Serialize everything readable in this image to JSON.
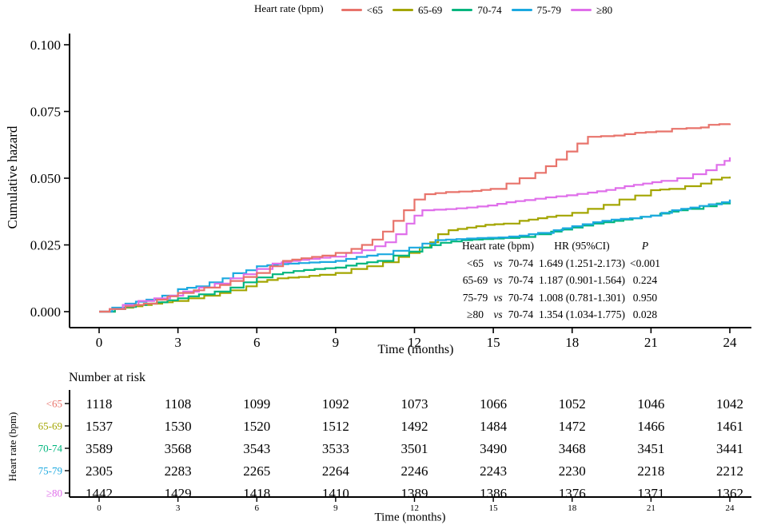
{
  "legend": {
    "title": "Heart rate (bpm)",
    "items": [
      {
        "label": "<65",
        "color": "#E8736B"
      },
      {
        "label": "65-69",
        "color": "#A3A500"
      },
      {
        "label": "70-74",
        "color": "#00B57E"
      },
      {
        "label": "75-79",
        "color": "#1CA9E0"
      },
      {
        "label": "≥80",
        "color": "#DF6EEA"
      }
    ]
  },
  "y_axis": {
    "title": "Cumulative hazard",
    "tick_labels": [
      "0.000",
      "0.025",
      "0.050",
      "0.075",
      "0.100"
    ],
    "tick_values": [
      0,
      0.025,
      0.05,
      0.075,
      0.1
    ]
  },
  "x_axis": {
    "title": "Time (months)",
    "ticks": [
      0,
      3,
      6,
      9,
      12,
      15,
      18,
      21,
      24
    ]
  },
  "inset_table": {
    "header": {
      "group": "Heart rate (bpm)",
      "hr": "HR (95%CI)",
      "p": "P"
    },
    "rows": [
      {
        "group": "<65",
        "vs": "vs",
        "ref": "70-74",
        "hr": "1.649 (1.251-2.173)",
        "p": "<0.001"
      },
      {
        "group": "65-69",
        "vs": "vs",
        "ref": "70-74",
        "hr": "1.187 (0.901-1.564)",
        "p": "0.224"
      },
      {
        "group": "75-79",
        "vs": "vs",
        "ref": "70-74",
        "hr": "1.008 (0.781-1.301)",
        "p": "0.950"
      },
      {
        "group": "≥80",
        "vs": "vs",
        "ref": "70-74",
        "hr": "1.354 (1.034-1.775)",
        "p": "0.028"
      }
    ]
  },
  "risk_table": {
    "title": "Number at risk",
    "axis_label": "Heart rate (bpm)",
    "x_label": "Time (months)",
    "times": [
      0,
      3,
      6,
      9,
      12,
      15,
      18,
      21,
      24
    ],
    "rows": [
      {
        "label": "<65",
        "color": "#E8736B",
        "counts": [
          1118,
          1108,
          1099,
          1092,
          1073,
          1066,
          1052,
          1046,
          1042
        ]
      },
      {
        "label": "65-69",
        "color": "#A3A500",
        "counts": [
          1537,
          1530,
          1520,
          1512,
          1492,
          1484,
          1472,
          1466,
          1461
        ]
      },
      {
        "label": "70-74",
        "color": "#00B57E",
        "counts": [
          3589,
          3568,
          3543,
          3533,
          3501,
          3490,
          3468,
          3451,
          3441
        ]
      },
      {
        "label": "75-79",
        "color": "#1CA9E0",
        "counts": [
          2305,
          2283,
          2265,
          2264,
          2246,
          2243,
          2230,
          2218,
          2212
        ]
      },
      {
        "label": "≥80",
        "color": "#DF6EEA",
        "counts": [
          1442,
          1429,
          1418,
          1410,
          1389,
          1386,
          1376,
          1371,
          1362
        ]
      }
    ]
  },
  "chart_data": {
    "type": "line",
    "step": true,
    "xlabel": "Time (months)",
    "ylabel": "Cumulative hazard",
    "xlim": [
      0,
      24
    ],
    "ylim": [
      0,
      0.1
    ],
    "grid": false,
    "legend_position": "top",
    "series": [
      {
        "name": "<65",
        "color": "#E8736B",
        "points": [
          [
            0,
            0
          ],
          [
            0.4,
            0.001
          ],
          [
            1,
            0.002
          ],
          [
            1.7,
            0.003
          ],
          [
            2.2,
            0.0045
          ],
          [
            3,
            0.007
          ],
          [
            3.6,
            0.008
          ],
          [
            4,
            0.009
          ],
          [
            4.6,
            0.01
          ],
          [
            5,
            0.0115
          ],
          [
            5.5,
            0.013
          ],
          [
            6,
            0.0145
          ],
          [
            6.5,
            0.017
          ],
          [
            7,
            0.019
          ],
          [
            7.7,
            0.02
          ],
          [
            8.5,
            0.021
          ],
          [
            9,
            0.022
          ],
          [
            9.6,
            0.0235
          ],
          [
            10,
            0.025
          ],
          [
            10.4,
            0.027
          ],
          [
            10.8,
            0.03
          ],
          [
            11.2,
            0.034
          ],
          [
            11.6,
            0.038
          ],
          [
            12,
            0.042
          ],
          [
            12.4,
            0.044
          ],
          [
            13.2,
            0.0448
          ],
          [
            14.2,
            0.0452
          ],
          [
            14.9,
            0.046
          ],
          [
            15.5,
            0.048
          ],
          [
            16,
            0.05
          ],
          [
            16.6,
            0.052
          ],
          [
            17,
            0.0545
          ],
          [
            17.4,
            0.057
          ],
          [
            17.8,
            0.06
          ],
          [
            18.2,
            0.063
          ],
          [
            18.6,
            0.0655
          ],
          [
            19.6,
            0.066
          ],
          [
            20.4,
            0.067
          ],
          [
            21.2,
            0.0675
          ],
          [
            21.8,
            0.0685
          ],
          [
            22.9,
            0.069
          ],
          [
            23.2,
            0.07
          ],
          [
            24,
            0.0705
          ]
        ]
      },
      {
        "name": "65-69",
        "color": "#A3A500",
        "points": [
          [
            0,
            0
          ],
          [
            0.6,
            0.001
          ],
          [
            1.3,
            0.002
          ],
          [
            2,
            0.003
          ],
          [
            2.8,
            0.004
          ],
          [
            3.4,
            0.005
          ],
          [
            4,
            0.006
          ],
          [
            4.6,
            0.007
          ],
          [
            5,
            0.008
          ],
          [
            5.6,
            0.0095
          ],
          [
            6,
            0.0112
          ],
          [
            6.8,
            0.0125
          ],
          [
            7.6,
            0.013
          ],
          [
            8.4,
            0.0138
          ],
          [
            9,
            0.0145
          ],
          [
            9.6,
            0.016
          ],
          [
            10.2,
            0.017
          ],
          [
            10.8,
            0.0185
          ],
          [
            11.4,
            0.0205
          ],
          [
            11.8,
            0.022
          ],
          [
            12.2,
            0.024
          ],
          [
            12.6,
            0.026
          ],
          [
            12.9,
            0.029
          ],
          [
            13.3,
            0.0305
          ],
          [
            14,
            0.0315
          ],
          [
            14.7,
            0.0325
          ],
          [
            15.4,
            0.033
          ],
          [
            16,
            0.034
          ],
          [
            16.7,
            0.035
          ],
          [
            17.4,
            0.036
          ],
          [
            18,
            0.037
          ],
          [
            18.6,
            0.0385
          ],
          [
            19.2,
            0.04
          ],
          [
            19.8,
            0.042
          ],
          [
            20.4,
            0.0435
          ],
          [
            21,
            0.0455
          ],
          [
            21.7,
            0.046
          ],
          [
            22.3,
            0.047
          ],
          [
            22.9,
            0.048
          ],
          [
            23.3,
            0.0495
          ],
          [
            23.7,
            0.0502
          ],
          [
            24,
            0.0506
          ]
        ]
      },
      {
        "name": "70-74",
        "color": "#00B57E",
        "points": [
          [
            0,
            0
          ],
          [
            0.6,
            0.001
          ],
          [
            1.4,
            0.0025
          ],
          [
            2.2,
            0.0035
          ],
          [
            3,
            0.005
          ],
          [
            3.8,
            0.0065
          ],
          [
            4.4,
            0.0075
          ],
          [
            5,
            0.009
          ],
          [
            5.5,
            0.011
          ],
          [
            6,
            0.0128
          ],
          [
            6.6,
            0.014
          ],
          [
            7.4,
            0.0152
          ],
          [
            8.2,
            0.016
          ],
          [
            9,
            0.0165
          ],
          [
            9.8,
            0.018
          ],
          [
            10.6,
            0.019
          ],
          [
            11.2,
            0.021
          ],
          [
            11.8,
            0.0225
          ],
          [
            12.3,
            0.024
          ],
          [
            13,
            0.0258
          ],
          [
            13.8,
            0.0268
          ],
          [
            14.6,
            0.0272
          ],
          [
            15.4,
            0.0276
          ],
          [
            16,
            0.028
          ],
          [
            16.6,
            0.029
          ],
          [
            17.2,
            0.03
          ],
          [
            18,
            0.0315
          ],
          [
            18.8,
            0.033
          ],
          [
            19.6,
            0.034
          ],
          [
            20.3,
            0.035
          ],
          [
            21,
            0.036
          ],
          [
            21.7,
            0.0375
          ],
          [
            22.4,
            0.0385
          ],
          [
            23,
            0.0395
          ],
          [
            23.5,
            0.0405
          ],
          [
            24,
            0.0418
          ]
        ]
      },
      {
        "name": "75-79",
        "color": "#1CA9E0",
        "points": [
          [
            0,
            0
          ],
          [
            0.5,
            0.0015
          ],
          [
            1,
            0.003
          ],
          [
            1.8,
            0.0045
          ],
          [
            2.4,
            0.006
          ],
          [
            3,
            0.0084
          ],
          [
            3.7,
            0.0095
          ],
          [
            4.2,
            0.011
          ],
          [
            4.7,
            0.0125
          ],
          [
            5.1,
            0.0144
          ],
          [
            5.6,
            0.0155
          ],
          [
            6,
            0.017
          ],
          [
            6.8,
            0.0178
          ],
          [
            7.6,
            0.0182
          ],
          [
            8.4,
            0.0186
          ],
          [
            9,
            0.019
          ],
          [
            9.8,
            0.0205
          ],
          [
            10.6,
            0.0215
          ],
          [
            11.2,
            0.0228
          ],
          [
            11.8,
            0.024
          ],
          [
            12.3,
            0.0255
          ],
          [
            12.8,
            0.0268
          ],
          [
            13.6,
            0.0272
          ],
          [
            14.4,
            0.0276
          ],
          [
            15.2,
            0.0278
          ],
          [
            16,
            0.0285
          ],
          [
            16.7,
            0.0295
          ],
          [
            17.3,
            0.0305
          ],
          [
            18,
            0.032
          ],
          [
            18.8,
            0.0335
          ],
          [
            19.5,
            0.0345
          ],
          [
            20.2,
            0.035
          ],
          [
            21,
            0.036
          ],
          [
            21.8,
            0.038
          ],
          [
            22.5,
            0.039
          ],
          [
            23.2,
            0.0402
          ],
          [
            23.7,
            0.041
          ],
          [
            24,
            0.042
          ]
        ]
      },
      {
        "name": "≥80",
        "color": "#DF6EEA",
        "points": [
          [
            0,
            0
          ],
          [
            0.4,
            0.001
          ],
          [
            0.9,
            0.0025
          ],
          [
            1.5,
            0.004
          ],
          [
            2.1,
            0.005
          ],
          [
            2.7,
            0.006
          ],
          [
            3.2,
            0.0075
          ],
          [
            3.8,
            0.009
          ],
          [
            4.4,
            0.0105
          ],
          [
            5,
            0.0125
          ],
          [
            5.5,
            0.014
          ],
          [
            6,
            0.016
          ],
          [
            6.6,
            0.018
          ],
          [
            7.3,
            0.019
          ],
          [
            8,
            0.0198
          ],
          [
            8.8,
            0.0206
          ],
          [
            9.4,
            0.022
          ],
          [
            10,
            0.023
          ],
          [
            10.5,
            0.0245
          ],
          [
            10.9,
            0.026
          ],
          [
            11.3,
            0.029
          ],
          [
            11.7,
            0.033
          ],
          [
            12,
            0.036
          ],
          [
            12.3,
            0.038
          ],
          [
            13.2,
            0.0384
          ],
          [
            14,
            0.039
          ],
          [
            14.8,
            0.0398
          ],
          [
            15.5,
            0.041
          ],
          [
            16.2,
            0.0418
          ],
          [
            17,
            0.0428
          ],
          [
            17.8,
            0.0436
          ],
          [
            18.6,
            0.0446
          ],
          [
            19.3,
            0.0456
          ],
          [
            20,
            0.047
          ],
          [
            20.7,
            0.048
          ],
          [
            21.4,
            0.049
          ],
          [
            22,
            0.05
          ],
          [
            22.6,
            0.0515
          ],
          [
            23.1,
            0.053
          ],
          [
            23.5,
            0.055
          ],
          [
            23.8,
            0.0565
          ],
          [
            24,
            0.0578
          ]
        ]
      }
    ]
  }
}
